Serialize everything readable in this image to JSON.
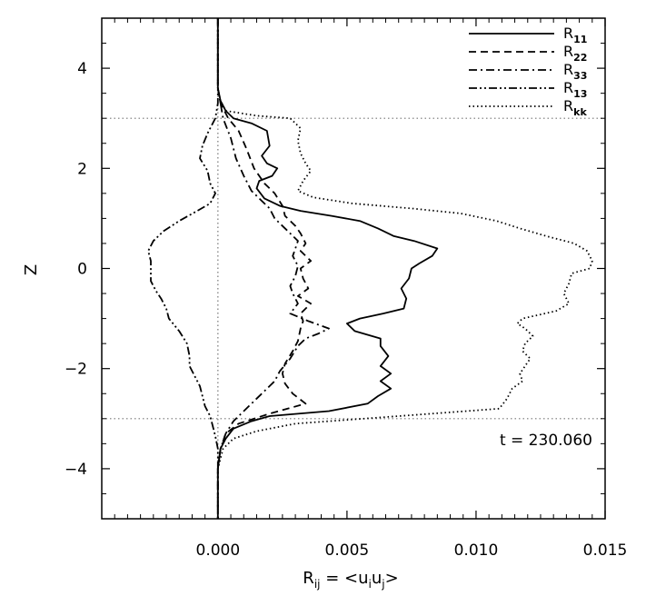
{
  "chart_data": {
    "type": "line",
    "xlim": [
      -0.0045,
      0.015
    ],
    "ylim": [
      -5,
      5
    ],
    "x_ticks": [
      0.0,
      0.005,
      0.01,
      0.015
    ],
    "x_tick_labels": [
      "0.000",
      "0.005",
      "0.010",
      "0.015"
    ],
    "y_ticks": [
      -4,
      -2,
      0,
      2,
      4
    ],
    "y_tick_labels": [
      "−4",
      "−2",
      "0",
      "2",
      "4"
    ],
    "xlabel": {
      "main": "R",
      "sub": "ij",
      "eq": " = <u",
      "sub2": "i",
      "mid": "u",
      "sub3": "j",
      "end": ">"
    },
    "ylabel": "Z",
    "reference_lines": {
      "horizontal": [
        3,
        -3
      ],
      "vertical": [
        0
      ]
    },
    "annotation": "t = 230.060",
    "legend_position": "top-right",
    "series": [
      {
        "name": "R",
        "sub": "11",
        "dash": "solid",
        "points": [
          [
            0,
            5
          ],
          [
            0,
            3.6
          ],
          [
            0.0001,
            3.35
          ],
          [
            0.0003,
            3.15
          ],
          [
            0.0006,
            3.0
          ],
          [
            0.0013,
            2.9
          ],
          [
            0.0019,
            2.75
          ],
          [
            0.002,
            2.45
          ],
          [
            0.0017,
            2.25
          ],
          [
            0.0019,
            2.1
          ],
          [
            0.0023,
            2.0
          ],
          [
            0.0021,
            1.85
          ],
          [
            0.0016,
            1.75
          ],
          [
            0.0015,
            1.6
          ],
          [
            0.0018,
            1.4
          ],
          [
            0.0024,
            1.25
          ],
          [
            0.0032,
            1.15
          ],
          [
            0.0044,
            1.05
          ],
          [
            0.0055,
            0.95
          ],
          [
            0.0062,
            0.8
          ],
          [
            0.0068,
            0.65
          ],
          [
            0.0076,
            0.55
          ],
          [
            0.0085,
            0.4
          ],
          [
            0.0083,
            0.25
          ],
          [
            0.0078,
            0.1
          ],
          [
            0.0075,
            0.0
          ],
          [
            0.0074,
            -0.2
          ],
          [
            0.0071,
            -0.4
          ],
          [
            0.0073,
            -0.6
          ],
          [
            0.0072,
            -0.8
          ],
          [
            0.0064,
            -0.9
          ],
          [
            0.0055,
            -1.0
          ],
          [
            0.005,
            -1.1
          ],
          [
            0.0053,
            -1.25
          ],
          [
            0.0063,
            -1.4
          ],
          [
            0.0063,
            -1.55
          ],
          [
            0.0066,
            -1.75
          ],
          [
            0.0063,
            -1.95
          ],
          [
            0.0067,
            -2.1
          ],
          [
            0.0063,
            -2.25
          ],
          [
            0.0067,
            -2.4
          ],
          [
            0.0062,
            -2.55
          ],
          [
            0.0058,
            -2.7
          ],
          [
            0.0043,
            -2.85
          ],
          [
            0.002,
            -2.95
          ],
          [
            0.0013,
            -3.05
          ],
          [
            0.0006,
            -3.2
          ],
          [
            0.0003,
            -3.4
          ],
          [
            0.0001,
            -3.6
          ],
          [
            0,
            -4
          ],
          [
            0,
            -5
          ]
        ]
      },
      {
        "name": "R",
        "sub": "22",
        "dash": "dashed",
        "points": [
          [
            0,
            5
          ],
          [
            0,
            3.6
          ],
          [
            0.0001,
            3.3
          ],
          [
            0.0004,
            3.0
          ],
          [
            0.0008,
            2.75
          ],
          [
            0.0011,
            2.4
          ],
          [
            0.0014,
            2.0
          ],
          [
            0.0018,
            1.7
          ],
          [
            0.0022,
            1.5
          ],
          [
            0.0025,
            1.25
          ],
          [
            0.0026,
            1.05
          ],
          [
            0.003,
            0.85
          ],
          [
            0.0032,
            0.7
          ],
          [
            0.0034,
            0.5
          ],
          [
            0.0032,
            0.35
          ],
          [
            0.0036,
            0.15
          ],
          [
            0.0032,
            0.0
          ],
          [
            0.0033,
            -0.2
          ],
          [
            0.0035,
            -0.4
          ],
          [
            0.0031,
            -0.55
          ],
          [
            0.0036,
            -0.7
          ],
          [
            0.0032,
            -0.9
          ],
          [
            0.0033,
            -1.05
          ],
          [
            0.0032,
            -1.2
          ],
          [
            0.0031,
            -1.45
          ],
          [
            0.0029,
            -1.65
          ],
          [
            0.0026,
            -1.9
          ],
          [
            0.0025,
            -2.1
          ],
          [
            0.0026,
            -2.3
          ],
          [
            0.0029,
            -2.5
          ],
          [
            0.0034,
            -2.7
          ],
          [
            0.002,
            -2.9
          ],
          [
            0.0008,
            -3.1
          ],
          [
            0.0003,
            -3.3
          ],
          [
            0.0001,
            -3.6
          ],
          [
            0,
            -4
          ],
          [
            0,
            -5
          ]
        ]
      },
      {
        "name": "R",
        "sub": "33",
        "dash": "dashdot",
        "points": [
          [
            0,
            5
          ],
          [
            0,
            3.6
          ],
          [
            0.0001,
            3.3
          ],
          [
            0.0002,
            3.0
          ],
          [
            0.0005,
            2.6
          ],
          [
            0.0007,
            2.2
          ],
          [
            0.001,
            1.85
          ],
          [
            0.0013,
            1.55
          ],
          [
            0.0017,
            1.35
          ],
          [
            0.002,
            1.2
          ],
          [
            0.0022,
            1.0
          ],
          [
            0.0025,
            0.85
          ],
          [
            0.0028,
            0.7
          ],
          [
            0.0031,
            0.55
          ],
          [
            0.003,
            0.4
          ],
          [
            0.0029,
            0.25
          ],
          [
            0.0031,
            0.05
          ],
          [
            0.003,
            -0.15
          ],
          [
            0.0028,
            -0.35
          ],
          [
            0.0029,
            -0.5
          ],
          [
            0.0031,
            -0.7
          ],
          [
            0.0028,
            -0.9
          ],
          [
            0.0035,
            -1.05
          ],
          [
            0.0043,
            -1.2
          ],
          [
            0.0039,
            -1.3
          ],
          [
            0.0034,
            -1.4
          ],
          [
            0.0031,
            -1.55
          ],
          [
            0.0028,
            -1.8
          ],
          [
            0.0024,
            -2.05
          ],
          [
            0.0022,
            -2.25
          ],
          [
            0.0018,
            -2.45
          ],
          [
            0.0014,
            -2.65
          ],
          [
            0.001,
            -2.85
          ],
          [
            0.0006,
            -3.05
          ],
          [
            0.0003,
            -3.3
          ],
          [
            0.0001,
            -3.6
          ],
          [
            0,
            -4
          ],
          [
            0,
            -5
          ]
        ]
      },
      {
        "name": "R",
        "sub": "13",
        "dash": "dashdotdot",
        "points": [
          [
            0,
            5
          ],
          [
            0,
            3.6
          ],
          [
            0,
            3.3
          ],
          [
            -0.0001,
            3.0
          ],
          [
            -0.0004,
            2.7
          ],
          [
            -0.0006,
            2.45
          ],
          [
            -0.0007,
            2.2
          ],
          [
            -0.0004,
            1.95
          ],
          [
            -0.0003,
            1.7
          ],
          [
            -0.0001,
            1.5
          ],
          [
            -0.0003,
            1.3
          ],
          [
            -0.0008,
            1.15
          ],
          [
            -0.0015,
            0.95
          ],
          [
            -0.0021,
            0.75
          ],
          [
            -0.0025,
            0.55
          ],
          [
            -0.0027,
            0.35
          ],
          [
            -0.0026,
            0.15
          ],
          [
            -0.0026,
            -0.05
          ],
          [
            -0.0026,
            -0.25
          ],
          [
            -0.0024,
            -0.45
          ],
          [
            -0.0022,
            -0.6
          ],
          [
            -0.002,
            -0.8
          ],
          [
            -0.0019,
            -1.0
          ],
          [
            -0.0015,
            -1.25
          ],
          [
            -0.0012,
            -1.5
          ],
          [
            -0.0011,
            -1.75
          ],
          [
            -0.0011,
            -1.95
          ],
          [
            -0.0009,
            -2.15
          ],
          [
            -0.0007,
            -2.35
          ],
          [
            -0.0006,
            -2.55
          ],
          [
            -0.0005,
            -2.75
          ],
          [
            -0.0003,
            -2.95
          ],
          [
            -0.0002,
            -3.15
          ],
          [
            -0.0001,
            -3.35
          ],
          [
            0,
            -3.6
          ],
          [
            0,
            -5
          ]
        ]
      },
      {
        "name": "R",
        "sub": "kk",
        "dash": "dotted",
        "points": [
          [
            0,
            5
          ],
          [
            0,
            3.6
          ],
          [
            0.0001,
            3.35
          ],
          [
            0.0003,
            3.15
          ],
          [
            0.0015,
            3.05
          ],
          [
            0.0028,
            3.0
          ],
          [
            0.0032,
            2.8
          ],
          [
            0.0031,
            2.55
          ],
          [
            0.0032,
            2.3
          ],
          [
            0.0034,
            2.1
          ],
          [
            0.0036,
            1.95
          ],
          [
            0.0033,
            1.75
          ],
          [
            0.0031,
            1.55
          ],
          [
            0.0037,
            1.42
          ],
          [
            0.0052,
            1.3
          ],
          [
            0.0075,
            1.2
          ],
          [
            0.0094,
            1.1
          ],
          [
            0.0108,
            0.95
          ],
          [
            0.0117,
            0.8
          ],
          [
            0.0127,
            0.65
          ],
          [
            0.0138,
            0.5
          ],
          [
            0.0143,
            0.35
          ],
          [
            0.0145,
            0.15
          ],
          [
            0.0144,
            0.0
          ],
          [
            0.0137,
            -0.1
          ],
          [
            0.0136,
            -0.3
          ],
          [
            0.0134,
            -0.5
          ],
          [
            0.0136,
            -0.7
          ],
          [
            0.0131,
            -0.85
          ],
          [
            0.0118,
            -1.0
          ],
          [
            0.0116,
            -1.1
          ],
          [
            0.0119,
            -1.2
          ],
          [
            0.0122,
            -1.35
          ],
          [
            0.0119,
            -1.5
          ],
          [
            0.0118,
            -1.65
          ],
          [
            0.0121,
            -1.8
          ],
          [
            0.0119,
            -1.95
          ],
          [
            0.0117,
            -2.1
          ],
          [
            0.0118,
            -2.25
          ],
          [
            0.0114,
            -2.4
          ],
          [
            0.0112,
            -2.6
          ],
          [
            0.0109,
            -2.8
          ],
          [
            0.007,
            -2.95
          ],
          [
            0.003,
            -3.1
          ],
          [
            0.0015,
            -3.25
          ],
          [
            0.0006,
            -3.4
          ],
          [
            0.0002,
            -3.6
          ],
          [
            0,
            -4
          ],
          [
            0,
            -5
          ]
        ]
      }
    ]
  }
}
